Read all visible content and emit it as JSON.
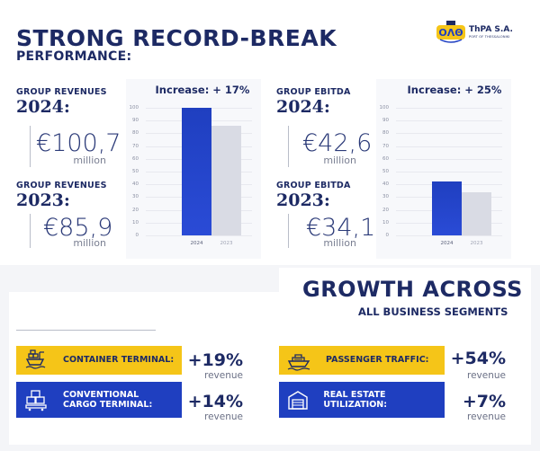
{
  "header": {
    "title": "STRONG RECORD-BREAK",
    "subtitle": "PERFORMANCE:",
    "logo": {
      "mark": "ΟΛΘ",
      "name": "ThPA S.A.",
      "tagline": "PORT OF THESSALONIKI"
    }
  },
  "revenues": {
    "current_label": "GROUP REVENUES",
    "current_year": "2024:",
    "current_value": "€100,7",
    "current_unit": "million",
    "prev_label": "GROUP REVENUES",
    "prev_year": "2023:",
    "prev_value": "€85,9",
    "prev_unit": "million"
  },
  "ebitda": {
    "current_label": "GROUP EBITDA",
    "current_year": "2024:",
    "current_value": "€42,6",
    "current_unit": "million",
    "prev_label": "GROUP EBITDA",
    "prev_year": "2023:",
    "prev_value": "€34,1",
    "prev_unit": "million"
  },
  "chart_data": [
    {
      "type": "bar",
      "title": "Increase: + 17%",
      "categories": [
        "2024",
        "2023"
      ],
      "values": [
        100.7,
        85.9
      ],
      "yticks": [
        "0",
        "10",
        "20",
        "30",
        "40",
        "50",
        "60",
        "70",
        "80",
        "90",
        "100"
      ],
      "ylim": [
        0,
        100
      ],
      "colors": [
        "#1f3fc0",
        "#d9dbe4"
      ]
    },
    {
      "type": "bar",
      "title": "Increase: + 25%",
      "categories": [
        "2024",
        "2023"
      ],
      "values": [
        42.6,
        34.1
      ],
      "yticks": [
        "0",
        "10",
        "20",
        "30",
        "40",
        "50",
        "60",
        "70",
        "80",
        "90",
        "100"
      ],
      "ylim": [
        0,
        100
      ],
      "colors": [
        "#1f3fc0",
        "#d9dbe4"
      ]
    }
  ],
  "growth": {
    "title": "GROWTH ACROSS",
    "subtitle": "ALL BUSINESS SEGMENTS"
  },
  "segments": [
    {
      "label": "CONTAINER TERMINAL:",
      "pct": "+19%",
      "unit": "revenue",
      "icon": "container-ship-icon"
    },
    {
      "label": "CONVENTIONAL CARGO TERMINAL:",
      "pct": "+14%",
      "unit": "revenue",
      "icon": "cargo-boxes-icon"
    },
    {
      "label": "PASSENGER TRAFFIC:",
      "pct": "+54%",
      "unit": "revenue",
      "icon": "cruise-ship-icon"
    },
    {
      "label": "REAL ESTATE UTILIZATION:",
      "pct": "+7%",
      "unit": "revenue",
      "icon": "warehouse-icon"
    }
  ],
  "colors": {
    "navy": "#1d2a64",
    "blue": "#1f3fc0",
    "yellow": "#f5c518",
    "grey_bar": "#d9dbe4"
  }
}
